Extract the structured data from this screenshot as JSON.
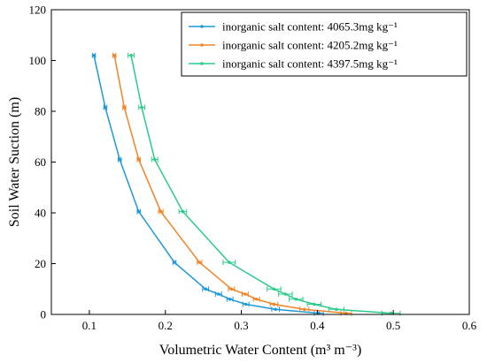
{
  "chart_data": {
    "type": "line",
    "title": "",
    "xlabel": "Volumetric Water Content (m³ m⁻³)",
    "ylabel": "Soil Water Suction (m)",
    "xlim": [
      0.05,
      0.6
    ],
    "ylim": [
      0,
      120
    ],
    "xticks": [
      "0.1",
      "0.2",
      "0.3",
      "0.4",
      "0.5",
      "0.6"
    ],
    "yticks": [
      "0",
      "20",
      "40",
      "60",
      "80",
      "100",
      "120"
    ],
    "grid": false,
    "legend_position": "top-right",
    "series": [
      {
        "name": "inorganic salt content: 4065.3mg kg⁻¹",
        "color": "#1f9ad6",
        "x": [
          0.106,
          0.121,
          0.14,
          0.165,
          0.212,
          0.253,
          0.27,
          0.285,
          0.306,
          0.345,
          0.402
        ],
        "y": [
          102,
          81.5,
          61,
          40.5,
          20.5,
          10,
          8,
          6,
          4,
          2,
          0.5
        ],
        "xerr": [
          0.002,
          0.002,
          0.002,
          0.002,
          0.002,
          0.004,
          0.004,
          0.004,
          0.004,
          0.005,
          0.006
        ]
      },
      {
        "name": "inorganic salt content: 4205.2mg kg⁻¹",
        "color": "#f0852a",
        "x": [
          0.133,
          0.146,
          0.165,
          0.194,
          0.245,
          0.287,
          0.305,
          0.32,
          0.343,
          0.383,
          0.438
        ],
        "y": [
          102,
          81.5,
          61,
          40.5,
          20.5,
          10,
          8,
          6,
          4,
          2,
          0.5
        ],
        "xerr": [
          0.002,
          0.002,
          0.002,
          0.003,
          0.003,
          0.004,
          0.004,
          0.004,
          0.005,
          0.006,
          0.007
        ]
      },
      {
        "name": "inorganic salt content: 4397.5mg kg⁻¹",
        "color": "#2bcc8a",
        "x": [
          0.155,
          0.169,
          0.186,
          0.223,
          0.284,
          0.343,
          0.358,
          0.372,
          0.396,
          0.425,
          0.497
        ],
        "y": [
          102,
          81.5,
          61,
          40.5,
          20.5,
          10,
          8,
          6,
          4,
          2,
          0.5
        ],
        "xerr": [
          0.004,
          0.004,
          0.004,
          0.005,
          0.008,
          0.009,
          0.009,
          0.009,
          0.009,
          0.01,
          0.012
        ]
      }
    ]
  }
}
